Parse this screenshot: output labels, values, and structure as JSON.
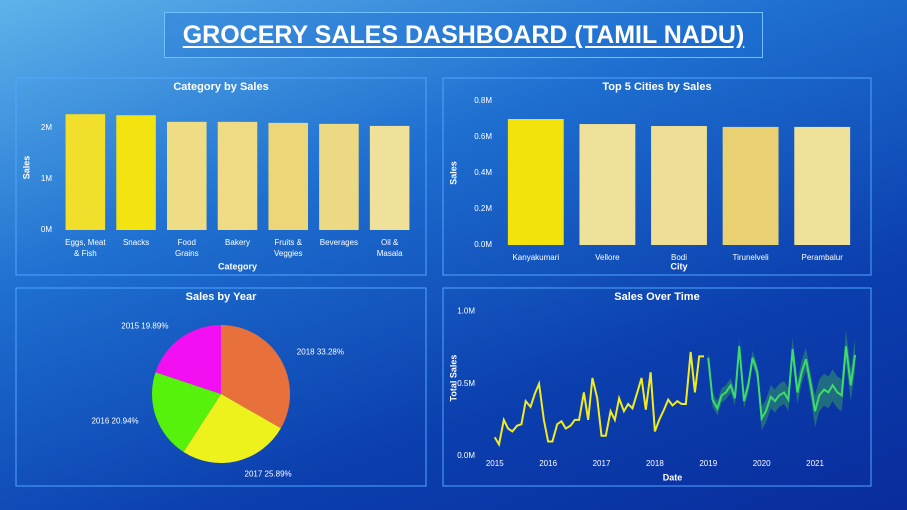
{
  "header": {
    "title": "GROCERY SALES DASHBOARD (TAMIL NADU)"
  },
  "chart_data": [
    {
      "type": "bar",
      "title": "Category by Sales",
      "x_label": "Category",
      "y_label": "Sales",
      "categories": [
        "Eggs, Meat & Fish",
        "Snacks",
        "Food Grains",
        "Bakery",
        "Fruits & Veggies",
        "Beverages",
        "Oil & Masala"
      ],
      "values": [
        2270000,
        2250000,
        2120000,
        2120000,
        2100000,
        2080000,
        2040000
      ],
      "colors": [
        "#f1df2c",
        "#f3e310",
        "#efdd85",
        "#eedb84",
        "#ecd677",
        "#ecd984",
        "#efe09a"
      ],
      "ylim": [
        0,
        2450000
      ],
      "yticks": [
        {
          "value": 0,
          "label": "0M"
        },
        {
          "value": 1000000,
          "label": "1M"
        },
        {
          "value": 2000000,
          "label": "2M"
        }
      ]
    },
    {
      "type": "bar",
      "title": "Top 5 Cities by Sales",
      "x_label": "City",
      "y_label": "Sales",
      "categories": [
        "Kanyakumari",
        "Vellore",
        "Bodi",
        "Tirunelveli",
        "Perambalur"
      ],
      "values": [
        700000,
        672000,
        661000,
        656000,
        656000
      ],
      "colors": [
        "#f3e30c",
        "#efe09a",
        "#efdf96",
        "#e9d173",
        "#efe09a"
      ],
      "ylim": [
        0,
        800000
      ],
      "yticks": [
        {
          "value": 0,
          "label": "0.0M"
        },
        {
          "value": 200000,
          "label": "0.2M"
        },
        {
          "value": 400000,
          "label": "0.4M"
        },
        {
          "value": 600000,
          "label": "0.6M"
        },
        {
          "value": 800000,
          "label": "0.8M"
        }
      ]
    },
    {
      "type": "pie",
      "title": "Sales by Year",
      "categories": [
        "2018",
        "2017",
        "2016",
        "2015"
      ],
      "values": [
        33.28,
        25.89,
        20.94,
        19.89
      ],
      "value_labels": [
        "33.28%",
        "25.89%",
        "20.94%",
        "19.89%"
      ],
      "colors": [
        "#e8703a",
        "#eef21c",
        "#56f20c",
        "#f20ff2"
      ]
    },
    {
      "type": "line",
      "title": "Sales Over Time",
      "x_label": "Date",
      "y_label": "Total Sales",
      "xlim": [
        2014.78,
        2021.88
      ],
      "xticks": [
        2015,
        2016,
        2017,
        2018,
        2019,
        2020,
        2021
      ],
      "ylim": [
        0,
        1080000
      ],
      "yticks": [
        {
          "value": 0,
          "label": "0.0M"
        },
        {
          "value": 500000,
          "label": "0.5M"
        },
        {
          "value": 1000000,
          "label": "1.0M"
        }
      ],
      "series": [
        {
          "color": "#f2ec1c",
          "x": [
            2015,
            2015.08,
            2015.17,
            2015.25,
            2015.33,
            2015.42,
            2015.5,
            2015.58,
            2015.67,
            2015.75,
            2015.83,
            2015.92,
            2016,
            2016.08,
            2016.17,
            2016.25,
            2016.33,
            2016.42,
            2016.5,
            2016.58,
            2016.67,
            2016.75,
            2016.83,
            2016.92,
            2017,
            2017.08,
            2017.17,
            2017.25,
            2017.33,
            2017.42,
            2017.5,
            2017.58,
            2017.67,
            2017.75,
            2017.83,
            2017.92,
            2018,
            2018.08,
            2018.17,
            2018.25,
            2018.33,
            2018.42,
            2018.5,
            2018.58,
            2018.67,
            2018.75,
            2018.83,
            2018.92
          ],
          "values": [
            130000,
            80000,
            250000,
            190000,
            170000,
            210000,
            220000,
            380000,
            340000,
            430000,
            500000,
            250000,
            100000,
            100000,
            220000,
            240000,
            190000,
            210000,
            250000,
            250000,
            440000,
            250000,
            540000,
            400000,
            140000,
            140000,
            310000,
            250000,
            400000,
            310000,
            360000,
            330000,
            440000,
            540000,
            320000,
            580000,
            170000,
            250000,
            320000,
            390000,
            350000,
            380000,
            360000,
            360000,
            720000,
            440000,
            690000,
            690000
          ]
        },
        {
          "color": "#3ddc6a",
          "band_color": "#2e8f6a",
          "x": [
            2019,
            2019.08,
            2019.17,
            2019.25,
            2019.33,
            2019.42,
            2019.5,
            2019.58,
            2019.67,
            2019.75,
            2019.83,
            2019.92,
            2020,
            2020.08,
            2020.17,
            2020.25,
            2020.33,
            2020.42,
            2020.5,
            2020.58,
            2020.67,
            2020.75,
            2020.83,
            2020.92,
            2021,
            2021.08,
            2021.17,
            2021.25,
            2021.33,
            2021.42,
            2021.5,
            2021.58,
            2021.67,
            2021.75
          ],
          "values": [
            680000,
            390000,
            330000,
            420000,
            440000,
            490000,
            400000,
            760000,
            380000,
            490000,
            680000,
            580000,
            260000,
            310000,
            410000,
            380000,
            420000,
            440000,
            390000,
            740000,
            440000,
            580000,
            670000,
            490000,
            310000,
            420000,
            460000,
            440000,
            490000,
            440000,
            420000,
            760000,
            490000,
            700000
          ],
          "lower": [
            630000,
            340000,
            280000,
            370000,
            390000,
            440000,
            350000,
            710000,
            330000,
            440000,
            630000,
            530000,
            180000,
            230000,
            330000,
            300000,
            340000,
            360000,
            310000,
            660000,
            360000,
            500000,
            590000,
            410000,
            200000,
            310000,
            350000,
            330000,
            380000,
            330000,
            310000,
            650000,
            380000,
            590000
          ],
          "upper": [
            730000,
            440000,
            380000,
            470000,
            490000,
            540000,
            450000,
            810000,
            430000,
            540000,
            730000,
            630000,
            340000,
            390000,
            490000,
            460000,
            500000,
            520000,
            470000,
            820000,
            520000,
            660000,
            750000,
            570000,
            420000,
            530000,
            570000,
            550000,
            600000,
            550000,
            530000,
            870000,
            600000,
            810000
          ]
        }
      ]
    }
  ]
}
